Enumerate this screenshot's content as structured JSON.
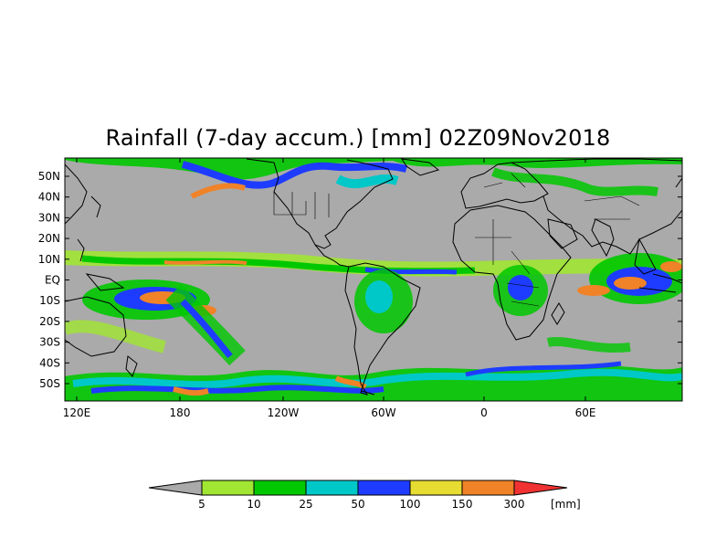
{
  "title": "Rainfall (7-day accum.) [mm] 02Z09Nov2018",
  "map": {
    "lat_labels": [
      "50N",
      "40N",
      "30N",
      "20N",
      "10N",
      "EQ",
      "10S",
      "20S",
      "30S",
      "40S",
      "50S"
    ],
    "lon_labels": [
      "120E",
      "180",
      "120W",
      "60W",
      "0",
      "60E"
    ]
  },
  "legend": {
    "thresholds": [
      "5",
      "10",
      "25",
      "50",
      "100",
      "150",
      "300"
    ],
    "unit": "[mm]",
    "colors": [
      "#aaaaaa",
      "#a0e632",
      "#00c800",
      "#00c8c8",
      "#1e3cff",
      "#e6dc32",
      "#f08228",
      "#f03232"
    ]
  },
  "colors": {
    "land": "#a8a8a8",
    "ocean": "#a8a8a8",
    "coast": "#000000"
  }
}
